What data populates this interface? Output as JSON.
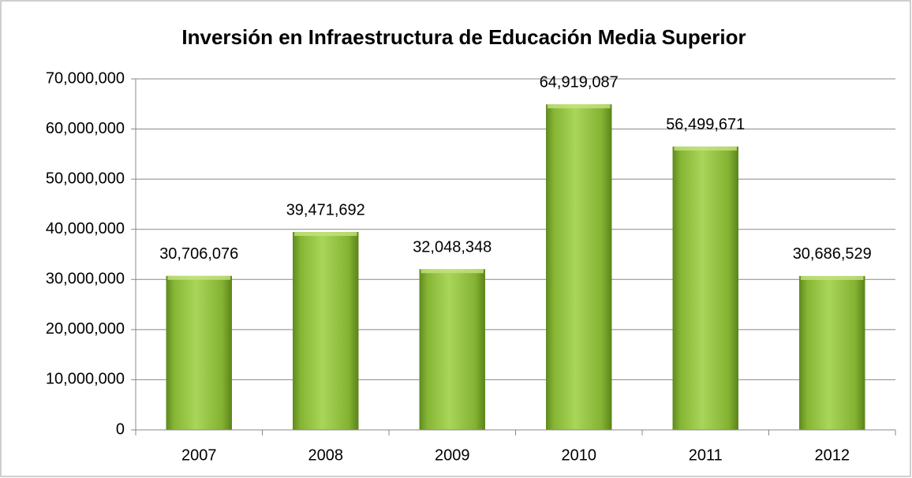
{
  "chart_data": {
    "type": "bar",
    "title": "Inversión en Infraestructura de Educación Media Superior",
    "categories": [
      "2007",
      "2008",
      "2009",
      "2010",
      "2011",
      "2012"
    ],
    "values": [
      30706076,
      39471692,
      32048348,
      64919087,
      56499671,
      30686529
    ],
    "value_labels": [
      "30,706,076",
      "39,471,692",
      "32,048,348",
      "64,919,087",
      "56,499,671",
      "30,686,529"
    ],
    "color": "#8fbf3a",
    "ylim": [
      0,
      70000000
    ],
    "yticks": [
      0,
      {
        "value": 10000000,
        "label": "10,000,000"
      },
      {
        "value": 20000000,
        "label": "20,000,000"
      },
      {
        "value": 30000000,
        "label": "30,000,000"
      },
      {
        "value": 40000000,
        "label": "40,000,000"
      },
      {
        "value": 50000000,
        "label": "50,000,000"
      },
      {
        "value": 60000000,
        "label": "60,000,000"
      },
      {
        "value": 70000000,
        "label": "70,000,000"
      }
    ],
    "grid": true
  }
}
